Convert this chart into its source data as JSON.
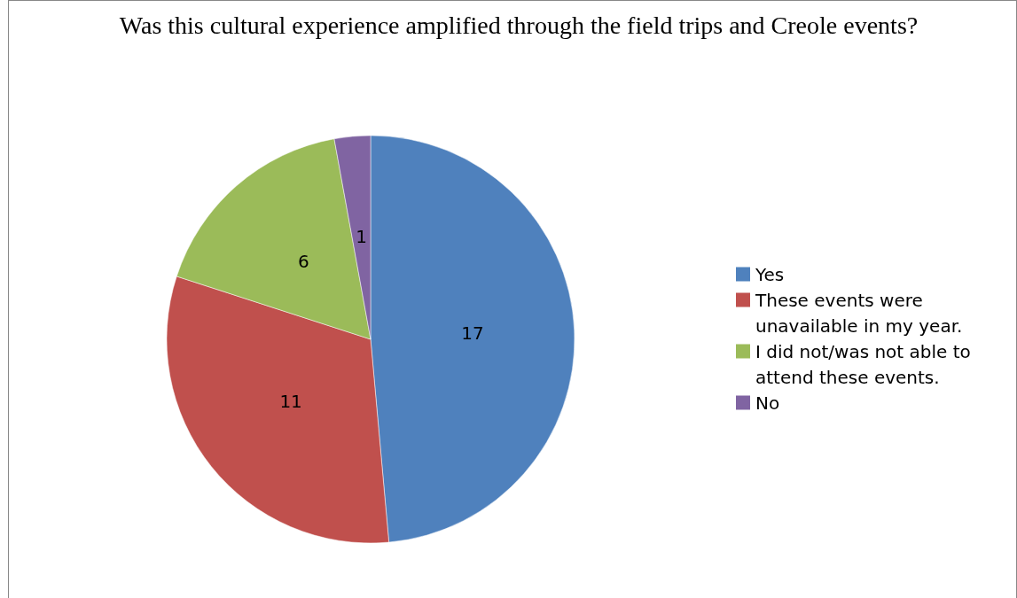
{
  "chart_data": {
    "type": "pie",
    "title": "Was this cultural experience amplified through the field trips and Creole events?",
    "categories": [
      "Yes",
      "These events were unavailable in my year.",
      "I did not/was not able to attend these events.",
      "No"
    ],
    "values": [
      17,
      11,
      6,
      1
    ],
    "colors": [
      "#4f81bd",
      "#c0504d",
      "#9bbb59",
      "#8064a2"
    ],
    "data_labels": true,
    "legend": "right"
  }
}
